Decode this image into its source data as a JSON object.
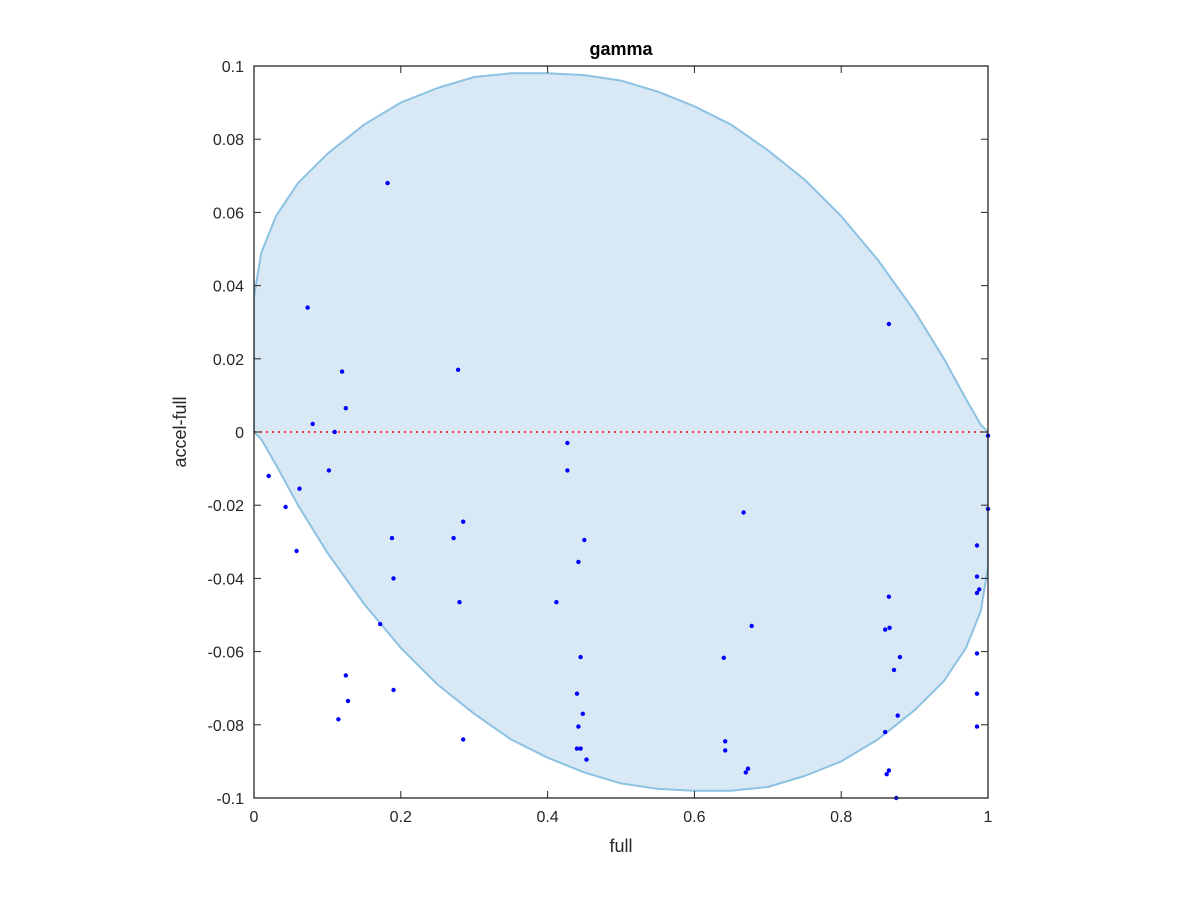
{
  "chart_data": {
    "type": "scatter",
    "title": "gamma",
    "xlabel": "full",
    "ylabel": "accel-full",
    "xlim": [
      0,
      1
    ],
    "ylim": [
      -0.1,
      0.1
    ],
    "x_ticks": [
      "0",
      "0.2",
      "0.4",
      "0.6",
      "0.8",
      "1"
    ],
    "y_ticks": [
      "-0.1",
      "-0.08",
      "-0.06",
      "-0.04",
      "-0.02",
      "0",
      "0.02",
      "0.04",
      "0.06",
      "0.08",
      "0.1"
    ],
    "x_tick_values": [
      0,
      0.2,
      0.4,
      0.6,
      0.8,
      1
    ],
    "y_tick_values": [
      -0.1,
      -0.08,
      -0.06,
      -0.04,
      -0.02,
      0,
      0.02,
      0.04,
      0.06,
      0.08,
      0.1
    ],
    "grid": false,
    "reference_line": {
      "y": 0,
      "style": "dotted",
      "color": "#ff0000"
    },
    "region": {
      "shape": "ellipse",
      "fill": "#d8e8f4",
      "stroke": "#8cc2e2",
      "boundary": [
        [
          0.0,
          0.037
        ],
        [
          0.01,
          0.049
        ],
        [
          0.03,
          0.059
        ],
        [
          0.06,
          0.068
        ],
        [
          0.1,
          0.076
        ],
        [
          0.15,
          0.084
        ],
        [
          0.2,
          0.09
        ],
        [
          0.25,
          0.094
        ],
        [
          0.3,
          0.097
        ],
        [
          0.35,
          0.098
        ],
        [
          0.4,
          0.098
        ],
        [
          0.45,
          0.0975
        ],
        [
          0.5,
          0.096
        ],
        [
          0.55,
          0.093
        ],
        [
          0.6,
          0.089
        ],
        [
          0.65,
          0.084
        ],
        [
          0.7,
          0.077
        ],
        [
          0.75,
          0.069
        ],
        [
          0.8,
          0.059
        ],
        [
          0.85,
          0.047
        ],
        [
          0.9,
          0.033
        ],
        [
          0.94,
          0.02
        ],
        [
          0.97,
          0.009
        ],
        [
          0.99,
          0.002
        ],
        [
          1.0,
          0.0
        ],
        [
          1.0,
          -0.037
        ],
        [
          0.99,
          -0.049
        ],
        [
          0.97,
          -0.059
        ],
        [
          0.94,
          -0.068
        ],
        [
          0.9,
          -0.076
        ],
        [
          0.85,
          -0.084
        ],
        [
          0.8,
          -0.09
        ],
        [
          0.75,
          -0.094
        ],
        [
          0.7,
          -0.097
        ],
        [
          0.65,
          -0.098
        ],
        [
          0.6,
          -0.098
        ],
        [
          0.55,
          -0.0975
        ],
        [
          0.5,
          -0.096
        ],
        [
          0.45,
          -0.093
        ],
        [
          0.4,
          -0.089
        ],
        [
          0.35,
          -0.084
        ],
        [
          0.3,
          -0.077
        ],
        [
          0.25,
          -0.069
        ],
        [
          0.2,
          -0.059
        ],
        [
          0.15,
          -0.047
        ],
        [
          0.1,
          -0.033
        ],
        [
          0.06,
          -0.02
        ],
        [
          0.03,
          -0.009
        ],
        [
          0.01,
          -0.002
        ],
        [
          0.0,
          0.0
        ]
      ]
    },
    "series": [
      {
        "color": "#0000ff",
        "points": [
          [
            0.182,
            0.068
          ],
          [
            0.073,
            0.034
          ],
          [
            0.865,
            0.0295
          ],
          [
            0.12,
            0.0165
          ],
          [
            0.278,
            0.017
          ],
          [
            0.125,
            0.0065
          ],
          [
            0.08,
            0.0022
          ],
          [
            0.11,
            0.0
          ],
          [
            0.427,
            -0.003
          ],
          [
            1.0,
            -0.001
          ],
          [
            0.02,
            -0.012
          ],
          [
            0.102,
            -0.0105
          ],
          [
            0.427,
            -0.0105
          ],
          [
            0.062,
            -0.0155
          ],
          [
            0.043,
            -0.0205
          ],
          [
            1.0,
            -0.021
          ],
          [
            0.285,
            -0.0245
          ],
          [
            0.667,
            -0.022
          ],
          [
            0.058,
            -0.0325
          ],
          [
            0.188,
            -0.029
          ],
          [
            0.272,
            -0.029
          ],
          [
            0.45,
            -0.0295
          ],
          [
            0.985,
            -0.031
          ],
          [
            0.442,
            -0.0355
          ],
          [
            0.19,
            -0.04
          ],
          [
            0.985,
            -0.0395
          ],
          [
            0.988,
            -0.043
          ],
          [
            0.985,
            -0.044
          ],
          [
            0.865,
            -0.045
          ],
          [
            0.28,
            -0.0465
          ],
          [
            0.412,
            -0.0465
          ],
          [
            0.172,
            -0.0525
          ],
          [
            0.678,
            -0.053
          ],
          [
            0.86,
            -0.054
          ],
          [
            0.866,
            -0.0535
          ],
          [
            0.125,
            -0.0665
          ],
          [
            0.445,
            -0.0615
          ],
          [
            0.64,
            -0.0617
          ],
          [
            0.88,
            -0.0615
          ],
          [
            0.985,
            -0.0605
          ],
          [
            0.872,
            -0.065
          ],
          [
            0.19,
            -0.0705
          ],
          [
            0.128,
            -0.0735
          ],
          [
            0.44,
            -0.0715
          ],
          [
            0.985,
            -0.0715
          ],
          [
            0.115,
            -0.0785
          ],
          [
            0.448,
            -0.077
          ],
          [
            0.877,
            -0.0775
          ],
          [
            0.285,
            -0.084
          ],
          [
            0.442,
            -0.0805
          ],
          [
            0.985,
            -0.0805
          ],
          [
            0.642,
            -0.0845
          ],
          [
            0.86,
            -0.082
          ],
          [
            0.44,
            -0.0865
          ],
          [
            0.445,
            -0.0865
          ],
          [
            0.642,
            -0.087
          ],
          [
            0.453,
            -0.0895
          ],
          [
            0.673,
            -0.092
          ],
          [
            0.67,
            -0.093
          ],
          [
            0.865,
            -0.0925
          ],
          [
            0.862,
            -0.0935
          ],
          [
            0.875,
            -0.1
          ]
        ]
      }
    ]
  }
}
